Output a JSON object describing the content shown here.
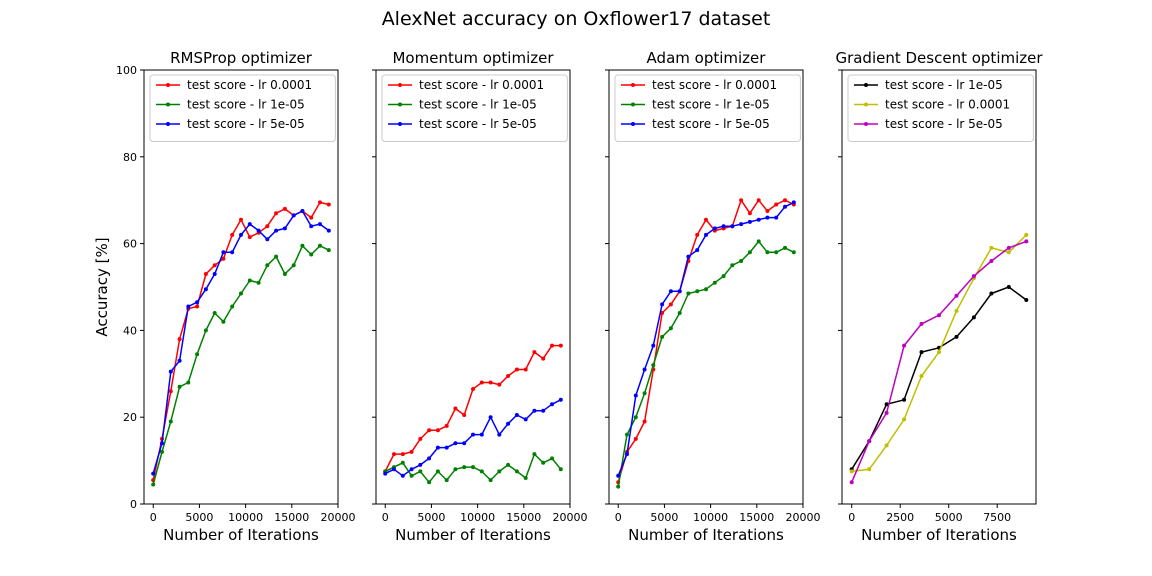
{
  "figure_title": "AlexNet accuracy on Oxflower17 dataset",
  "colors": {
    "red": "#ff0000",
    "green": "#008000",
    "blue": "#0000ff",
    "black": "#000000",
    "yellow": "#bfbf00",
    "magenta": "#bf00bf"
  },
  "chart_data": [
    {
      "type": "line",
      "title": "RMSProp optimizer",
      "xlabel": "Number of Iterations",
      "ylabel": "Accuracy [%]",
      "xlim": [
        -1000,
        20000
      ],
      "ylim": [
        0,
        100
      ],
      "xticks": [
        0,
        5000,
        10000,
        15000,
        20000
      ],
      "yticks": [
        0,
        20,
        40,
        60,
        80,
        100
      ],
      "legend_position": "upper-left",
      "x": [
        0,
        950,
        1900,
        2850,
        3800,
        4750,
        5700,
        6650,
        7600,
        8550,
        9500,
        10450,
        11400,
        12350,
        13300,
        14250,
        15200,
        16150,
        17100,
        18050,
        19000
      ],
      "series": [
        {
          "name": "test score - lr 0.0001",
          "color": "red",
          "values": [
            5.5,
            15,
            26,
            38,
            45,
            45.5,
            53,
            55,
            56.5,
            62,
            65.5,
            61.5,
            62.5,
            64,
            67,
            68,
            66.5,
            67.5,
            66,
            69.5,
            69
          ]
        },
        {
          "name": "test score - lr 1e-05",
          "color": "green",
          "values": [
            4.5,
            12,
            19,
            27,
            28,
            34.5,
            40,
            44,
            42,
            45.5,
            48.5,
            51.5,
            51,
            55,
            57,
            53,
            55,
            59.5,
            57.5,
            59.5,
            58.5
          ]
        },
        {
          "name": "test score - lr 5e-05",
          "color": "blue",
          "values": [
            7,
            14,
            30.5,
            33,
            45.5,
            46.5,
            49.5,
            53,
            58,
            58,
            62,
            64.5,
            63,
            61,
            63,
            63.5,
            66.5,
            67.5,
            64,
            64.5,
            63
          ]
        }
      ]
    },
    {
      "type": "line",
      "title": "Momentum optimizer",
      "xlabel": "Number of Iterations",
      "ylabel": "",
      "xlim": [
        -1000,
        20000
      ],
      "ylim": [
        0,
        100
      ],
      "xticks": [
        0,
        5000,
        10000,
        15000,
        20000
      ],
      "yticks": [
        0,
        20,
        40,
        60,
        80,
        100
      ],
      "legend_position": "upper-left",
      "x": [
        0,
        950,
        1900,
        2850,
        3800,
        4750,
        5700,
        6650,
        7600,
        8550,
        9500,
        10450,
        11400,
        12350,
        13300,
        14250,
        15200,
        16150,
        17100,
        18050,
        19000
      ],
      "series": [
        {
          "name": "test score - lr 0.0001",
          "color": "red",
          "values": [
            7.5,
            11.5,
            11.5,
            12,
            15,
            17,
            17,
            18,
            22,
            20.5,
            26.5,
            28,
            28,
            27.5,
            29.5,
            31,
            31,
            35,
            33.5,
            36.5,
            36.5
          ]
        },
        {
          "name": "test score - lr 1e-05",
          "color": "green",
          "values": [
            7.5,
            8.5,
            9.5,
            6.5,
            7.5,
            5,
            7.5,
            5.5,
            8,
            8.5,
            8.5,
            7.5,
            5.5,
            7.5,
            9,
            7.5,
            6,
            11.5,
            9.5,
            10.5,
            8
          ]
        },
        {
          "name": "test score - lr 5e-05",
          "color": "blue",
          "values": [
            7,
            8,
            6.5,
            8,
            9,
            10.5,
            13,
            13,
            14,
            14,
            16,
            16,
            20,
            16,
            18.5,
            20.5,
            19.5,
            21.5,
            21.5,
            23,
            24
          ]
        }
      ]
    },
    {
      "type": "line",
      "title": "Adam optimizer",
      "xlabel": "Number of Iterations",
      "ylabel": "",
      "xlim": [
        -1000,
        20000
      ],
      "ylim": [
        0,
        100
      ],
      "xticks": [
        0,
        5000,
        10000,
        15000,
        20000
      ],
      "yticks": [
        0,
        20,
        40,
        60,
        80,
        100
      ],
      "legend_position": "upper-left",
      "x": [
        0,
        950,
        1900,
        2850,
        3800,
        4750,
        5700,
        6650,
        7600,
        8550,
        9500,
        10450,
        11400,
        12350,
        13300,
        14250,
        15200,
        16150,
        17100,
        18050,
        19000
      ],
      "series": [
        {
          "name": "test score - lr 0.0001",
          "color": "red",
          "values": [
            5,
            12,
            15,
            19,
            31,
            44,
            46,
            49,
            56,
            62,
            65.5,
            63,
            63.5,
            64,
            70,
            67,
            70,
            67.5,
            69,
            70,
            69
          ]
        },
        {
          "name": "test score - lr 1e-05",
          "color": "green",
          "values": [
            4,
            16,
            20,
            25.5,
            32,
            38.5,
            40.5,
            44,
            48.5,
            49,
            49.5,
            51,
            52.5,
            55,
            56,
            58,
            60.5,
            58,
            58,
            59,
            58
          ]
        },
        {
          "name": "test score - lr 5e-05",
          "color": "blue",
          "values": [
            6.5,
            11.5,
            25,
            31,
            36.5,
            46,
            49,
            49,
            57,
            58.5,
            62,
            63.5,
            64,
            64,
            64.5,
            65,
            65.5,
            66,
            66,
            68.5,
            69.5
          ]
        }
      ]
    },
    {
      "type": "line",
      "title": "Gradient Descent optimizer",
      "xlabel": "Number of Iterations",
      "ylabel": "",
      "xlim": [
        -500,
        9500
      ],
      "ylim": [
        0,
        100
      ],
      "xticks": [
        0,
        2500,
        5000,
        7500
      ],
      "yticks": [
        0,
        20,
        40,
        60,
        80,
        100
      ],
      "legend_position": "upper-left",
      "x": [
        0,
        900,
        1800,
        2700,
        3600,
        4500,
        5400,
        6300,
        7200,
        8100,
        9000
      ],
      "series": [
        {
          "name": "test score - lr 1e-05",
          "color": "black",
          "values": [
            8,
            14.5,
            23,
            24,
            35,
            36,
            38.5,
            43,
            48.5,
            50,
            47
          ]
        },
        {
          "name": "test score - lr 0.0001",
          "color": "yellow",
          "values": [
            7.5,
            8,
            13.5,
            19.5,
            29.5,
            35,
            44.5,
            52,
            59,
            58,
            62
          ]
        },
        {
          "name": "test score - lr 5e-05",
          "color": "magenta",
          "values": [
            5,
            14.5,
            21,
            36.5,
            41.5,
            43.5,
            48,
            52.5,
            56,
            59,
            60.5
          ]
        }
      ]
    }
  ]
}
